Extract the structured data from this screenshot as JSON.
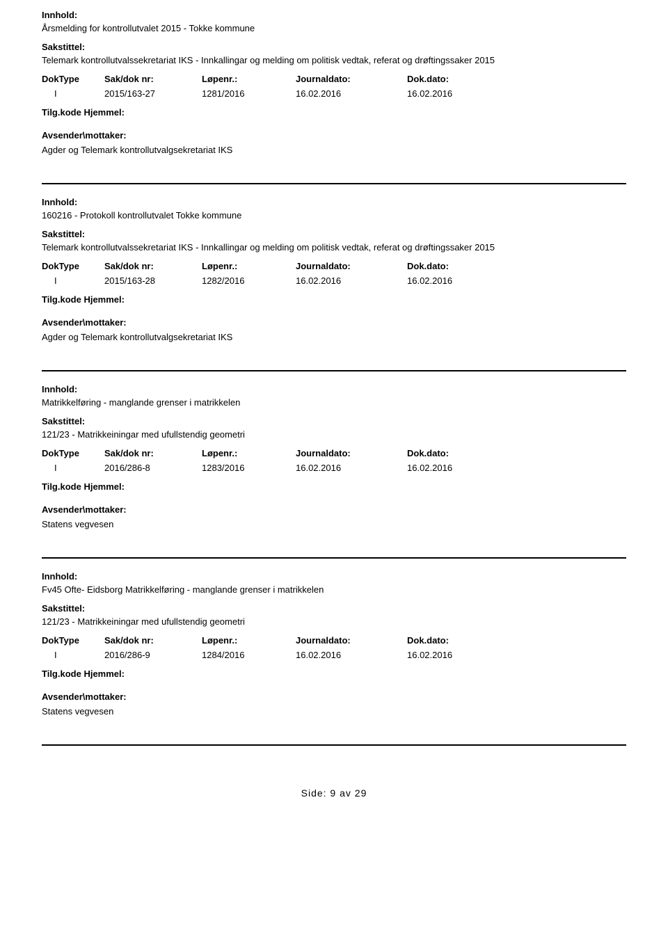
{
  "labels": {
    "innhold": "Innhold:",
    "sakstittel": "Sakstittel:",
    "doktype": "DokType",
    "sakdoknr": "Sak/dok nr:",
    "loepenr": "Løpenr.:",
    "journaldato": "Journaldato:",
    "dokdato": "Dok.dato:",
    "tilgkode": "Tilg.kode",
    "hjemmel": "Hjemmel:",
    "avsender": "Avsender\\mottaker:"
  },
  "entries": [
    {
      "innhold": "Årsmelding for kontrollutvalet 2015 - Tokke kommune",
      "sakstittel": "Telemark kontrollutvalssekretariat IKS - Innkallingar og melding om politisk vedtak, referat og drøftingssaker 2015",
      "doktype": "I",
      "sakdoknr": "2015/163-27",
      "loepenr": "1281/2016",
      "journaldato": "16.02.2016",
      "dokdato": "16.02.2016",
      "avsender": "Agder og Telemark kontrollutvalgsekretariat IKS"
    },
    {
      "innhold": "160216 - Protokoll kontrollutvalet Tokke kommune",
      "sakstittel": "Telemark kontrollutvalssekretariat IKS - Innkallingar og melding om politisk vedtak, referat og drøftingssaker 2015",
      "doktype": "I",
      "sakdoknr": "2015/163-28",
      "loepenr": "1282/2016",
      "journaldato": "16.02.2016",
      "dokdato": "16.02.2016",
      "avsender": "Agder og Telemark kontrollutvalgsekretariat IKS"
    },
    {
      "innhold": "Matrikkelføring - manglande grenser i matrikkelen",
      "sakstittel": "121/23 - Matrikkeiningar med ufullstendig geometri",
      "doktype": "I",
      "sakdoknr": "2016/286-8",
      "loepenr": "1283/2016",
      "journaldato": "16.02.2016",
      "dokdato": "16.02.2016",
      "avsender": "Statens vegvesen"
    },
    {
      "innhold": "Fv45  Ofte- Eidsborg Matrikkelføring - manglande grenser i matrikkelen",
      "sakstittel": "121/23 - Matrikkeiningar med ufullstendig geometri",
      "doktype": "I",
      "sakdoknr": "2016/286-9",
      "loepenr": "1284/2016",
      "journaldato": "16.02.2016",
      "dokdato": "16.02.2016",
      "avsender": "Statens vegvesen"
    }
  ],
  "footer": {
    "text": "Side: 9 av 29"
  }
}
